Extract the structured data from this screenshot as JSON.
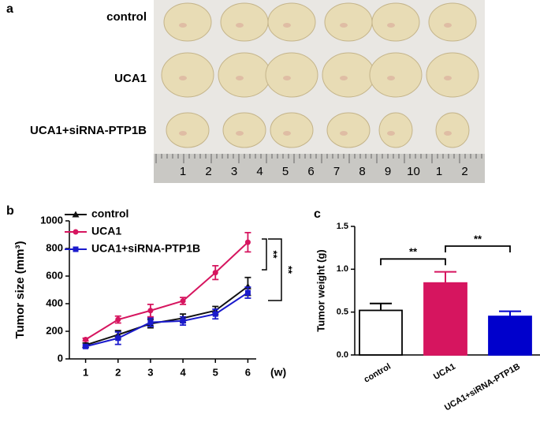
{
  "panel_labels": [
    "a",
    "b",
    "c"
  ],
  "photo": {
    "row_labels": [
      "control",
      "UCA1",
      "UCA1+siRNA-PTP1B"
    ],
    "ruler_labels": [
      "1",
      "2",
      "3",
      "4",
      "5",
      "6",
      "7",
      "8",
      "9",
      "10",
      "1",
      "2"
    ]
  },
  "chart_data": [
    {
      "type": "line",
      "ylabel": "Tumor size (mm³)",
      "xlabel": "(w)",
      "x": [
        1,
        2,
        3,
        4,
        5,
        6
      ],
      "xlim": [
        0.5,
        6.5
      ],
      "xticks": [
        1,
        2,
        3,
        4,
        5,
        6
      ],
      "ylim": [
        0,
        1000
      ],
      "yticks": [
        0,
        200,
        400,
        600,
        800,
        1000
      ],
      "series": [
        {
          "name": "control",
          "color": "#111111",
          "marker": "triangle",
          "values": [
            100,
            175,
            255,
            295,
            350,
            525
          ],
          "errors": [
            15,
            30,
            30,
            30,
            30,
            65
          ]
        },
        {
          "name": "UCA1",
          "color": "#d6155f",
          "marker": "circle",
          "values": [
            140,
            285,
            350,
            420,
            625,
            845
          ],
          "errors": [
            10,
            25,
            45,
            25,
            50,
            70
          ]
        },
        {
          "name": "UCA1+siRNA-PTP1B",
          "color": "#1a1acc",
          "marker": "square",
          "values": [
            90,
            150,
            265,
            275,
            325,
            480
          ],
          "errors": [
            10,
            45,
            30,
            30,
            35,
            40
          ]
        }
      ],
      "annotations": [
        "**",
        "**"
      ]
    },
    {
      "type": "bar",
      "ylabel": "Tumor weight (g)",
      "categories": [
        "control",
        "UCA1",
        "UCA1+siRNA-PTP1B"
      ],
      "values": [
        0.52,
        0.84,
        0.45
      ],
      "errors": [
        0.08,
        0.13,
        0.06
      ],
      "colors": [
        "#ffffff",
        "#d6155f",
        "#0000cc"
      ],
      "ylim": [
        0,
        1.5
      ],
      "yticks": [
        {
          "value": 0,
          "label": "0.0"
        },
        0.5,
        {
          "value": 1,
          "label": "1.0"
        },
        1.5
      ],
      "annotations": [
        "**",
        "**"
      ]
    }
  ]
}
